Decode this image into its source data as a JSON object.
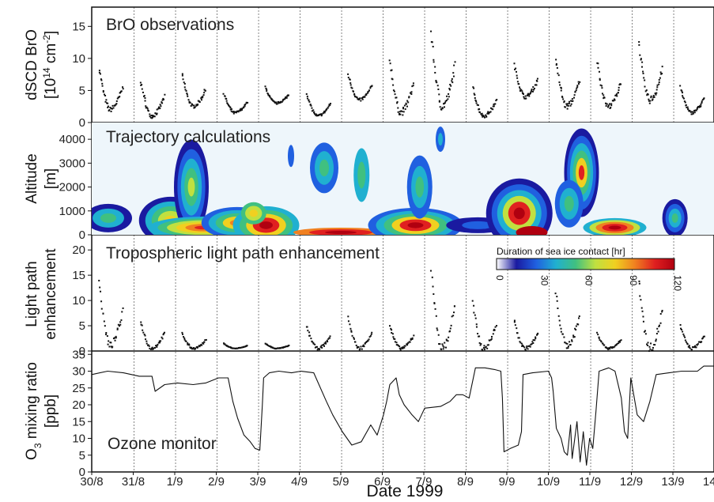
{
  "x_axis": {
    "label": "Date 1999",
    "tick_labels": [
      "30/8",
      "31/8",
      "1/9",
      "2/9",
      "3/9",
      "4/9",
      "5/9",
      "6/9",
      "7/9",
      "8/9",
      "9/9",
      "10/9",
      "11/9",
      "12/9",
      "13/9",
      "14/9"
    ]
  },
  "panels": [
    {
      "id": "bro",
      "title": "BrO observations",
      "ylabel_lines": [
        "dSCD BrO",
        "[10",
        "14",
        " cm",
        "-2",
        "]"
      ],
      "yticks": [
        "0",
        "5",
        "10",
        "15"
      ],
      "ylim": [
        0,
        18
      ]
    },
    {
      "id": "trajectory",
      "title": "Trajectory calculations",
      "ylabel_lines": [
        "Altitude",
        "[m]"
      ],
      "yticks": [
        "0",
        "1000",
        "2000",
        "3000",
        "4000"
      ],
      "ylim": [
        0,
        4700
      ],
      "colorbar": {
        "title": "Duration of sea ice contact [hr]",
        "ticks": [
          "0",
          "30",
          "60",
          "90",
          "120"
        ],
        "colors": [
          "#ffffff",
          "#1a1aa0",
          "#2060e0",
          "#20b0d0",
          "#40c080",
          "#c0e040",
          "#f0d020",
          "#f08020",
          "#e02020",
          "#b00010"
        ]
      }
    },
    {
      "id": "lightpath",
      "title": "Tropospheric light path enhancement",
      "ylabel_lines": [
        "Light path",
        "enhancement"
      ],
      "yticks": [
        "0",
        "5",
        "10",
        "15",
        "20"
      ],
      "ylim": [
        0,
        23
      ]
    },
    {
      "id": "ozone",
      "title": "Ozone monitor",
      "ylabel_lines": [
        "O",
        "3",
        " mixing ratio",
        "[ppb]"
      ],
      "yticks": [
        "0",
        "5",
        "10",
        "15",
        "20",
        "25",
        "30",
        "35"
      ],
      "ylim": [
        0,
        36
      ]
    }
  ],
  "chart_data": [
    {
      "type": "scatter",
      "title": "BrO observations",
      "xlabel": "Date 1999",
      "ylabel": "dSCD BrO [10^14 cm^-2]",
      "ylim": [
        0,
        18
      ],
      "daily_series": [
        {
          "day": "30/8",
          "min": 2.0,
          "max": 8.5
        },
        {
          "day": "31/8",
          "min": 1.0,
          "max": 6.5
        },
        {
          "day": "1/9",
          "min": 2.5,
          "max": 7.5
        },
        {
          "day": "2/9",
          "min": 1.5,
          "max": 4.5
        },
        {
          "day": "3/9",
          "min": 3.0,
          "max": 5.5
        },
        {
          "day": "4/9",
          "min": 1.0,
          "max": 4.5
        },
        {
          "day": "5/9",
          "min": 3.5,
          "max": 7.5
        },
        {
          "day": "6/9",
          "min": 1.5,
          "max": 10.0
        },
        {
          "day": "7/9",
          "min": 2.5,
          "max": 14.0
        },
        {
          "day": "8/9",
          "min": 1.0,
          "max": 5.5
        },
        {
          "day": "9/9",
          "min": 4.0,
          "max": 9.0
        },
        {
          "day": "10/9",
          "min": 2.5,
          "max": 10.0
        },
        {
          "day": "11/9",
          "min": 2.5,
          "max": 9.5
        },
        {
          "day": "12/9",
          "min": 3.5,
          "max": 12.5
        },
        {
          "day": "13/9",
          "min": 1.5,
          "max": 5.5
        },
        {
          "day": "14/9",
          "min": 0.5,
          "max": 3.0
        }
      ]
    },
    {
      "type": "heatmap",
      "title": "Trajectory calculations",
      "xlabel": "Date 1999",
      "ylabel": "Altitude [m]",
      "ylim": [
        0,
        4700
      ],
      "colorbar_label": "Duration of sea ice contact [hr]",
      "colorbar_range": [
        0,
        120
      ]
    },
    {
      "type": "scatter",
      "title": "Tropospheric light path enhancement",
      "xlabel": "Date 1999",
      "ylabel": "Light path enhancement",
      "ylim": [
        0,
        23
      ],
      "daily_series": [
        {
          "day": "30/8",
          "min": 1.0,
          "max": 14.0
        },
        {
          "day": "31/8",
          "min": 0.5,
          "max": 6.0
        },
        {
          "day": "1/9",
          "min": 0.5,
          "max": 3.5
        },
        {
          "day": "2/9",
          "min": 0.5,
          "max": 1.5
        },
        {
          "day": "3/9",
          "min": 0.5,
          "max": 1.5
        },
        {
          "day": "4/9",
          "min": 0.5,
          "max": 5.0
        },
        {
          "day": "5/9",
          "min": 0.5,
          "max": 6.5
        },
        {
          "day": "6/9",
          "min": 0.5,
          "max": 5.0
        },
        {
          "day": "7/9",
          "min": 0.5,
          "max": 16.5
        },
        {
          "day": "8/9",
          "min": 0.5,
          "max": 9.5
        },
        {
          "day": "9/9",
          "min": 0.5,
          "max": 6.0
        },
        {
          "day": "10/9",
          "min": 1.0,
          "max": 11.5
        },
        {
          "day": "11/9",
          "min": 0.5,
          "max": 3.5
        },
        {
          "day": "12/9",
          "min": 0.5,
          "max": 14.5
        },
        {
          "day": "13/9",
          "min": 0.5,
          "max": 5.0
        },
        {
          "day": "14/9",
          "min": 0.5,
          "max": 2.0
        }
      ]
    },
    {
      "type": "line",
      "title": "Ozone monitor",
      "xlabel": "Date 1999",
      "ylabel": "O3 mixing ratio [ppb]",
      "ylim": [
        0,
        36
      ],
      "x_unit": "days since 30/8",
      "points": [
        [
          0,
          29
        ],
        [
          0.5,
          30
        ],
        [
          1,
          29.5
        ],
        [
          1.5,
          28.5
        ],
        [
          1.9,
          28.5
        ],
        [
          2.0,
          24
        ],
        [
          2.3,
          26
        ],
        [
          2.7,
          26.5
        ],
        [
          3.2,
          26
        ],
        [
          3.6,
          26.5
        ],
        [
          4,
          28
        ],
        [
          4.3,
          28
        ],
        [
          4.45,
          21
        ],
        [
          4.6,
          16
        ],
        [
          4.8,
          11
        ],
        [
          5.0,
          9
        ],
        [
          5.15,
          7
        ],
        [
          5.3,
          6.5
        ],
        [
          5.38,
          20
        ],
        [
          5.42,
          28
        ],
        [
          5.6,
          29.5
        ],
        [
          5.9,
          30
        ],
        [
          6.3,
          29.5
        ],
        [
          6.6,
          30
        ],
        [
          7.0,
          29.5
        ],
        [
          7.4,
          21
        ],
        [
          7.6,
          17
        ],
        [
          7.9,
          12
        ],
        [
          8.2,
          8
        ],
        [
          8.5,
          9
        ],
        [
          8.8,
          14
        ],
        [
          9.0,
          11
        ],
        [
          9.2,
          17
        ],
        [
          9.3,
          21
        ],
        [
          9.4,
          26
        ],
        [
          9.6,
          28
        ],
        [
          9.7,
          23
        ],
        [
          9.85,
          20
        ],
        [
          10.1,
          17
        ],
        [
          10.3,
          15
        ],
        [
          10.5,
          19
        ],
        [
          11.0,
          19.5
        ],
        [
          11.3,
          21
        ],
        [
          11.5,
          23
        ],
        [
          11.7,
          23
        ],
        [
          11.9,
          22
        ],
        [
          12.1,
          31
        ],
        [
          12.4,
          31
        ],
        [
          12.7,
          30.5
        ],
        [
          12.9,
          30
        ],
        [
          12.95,
          22
        ],
        [
          13.0,
          6
        ],
        [
          13.2,
          7
        ],
        [
          13.45,
          8
        ],
        [
          13.55,
          12
        ],
        [
          13.6,
          29
        ],
        [
          13.9,
          29.5
        ],
        [
          14.4,
          30
        ],
        [
          14.5,
          28
        ],
        [
          14.55,
          24
        ],
        [
          14.65,
          13
        ],
        [
          14.8,
          10
        ],
        [
          14.9,
          6
        ],
        [
          15.0,
          5
        ],
        [
          15.1,
          14
        ],
        [
          15.15,
          4
        ],
        [
          15.3,
          15
        ],
        [
          15.4,
          3
        ],
        [
          15.5,
          12
        ],
        [
          15.6,
          2
        ],
        [
          15.7,
          10
        ],
        [
          15.8,
          7
        ],
        [
          15.9,
          18
        ],
        [
          16.0,
          30
        ],
        [
          16.3,
          31
        ],
        [
          16.5,
          30
        ],
        [
          16.7,
          22
        ],
        [
          16.8,
          12
        ],
        [
          16.9,
          10
        ],
        [
          17.0,
          28
        ],
        [
          17.2,
          17
        ],
        [
          17.4,
          15
        ],
        [
          17.6,
          21
        ],
        [
          17.8,
          29
        ],
        [
          18.2,
          29.5
        ],
        [
          18.6,
          30
        ],
        [
          19.1,
          30
        ],
        [
          19.3,
          31.5
        ],
        [
          19.7,
          31.5
        ]
      ]
    }
  ]
}
